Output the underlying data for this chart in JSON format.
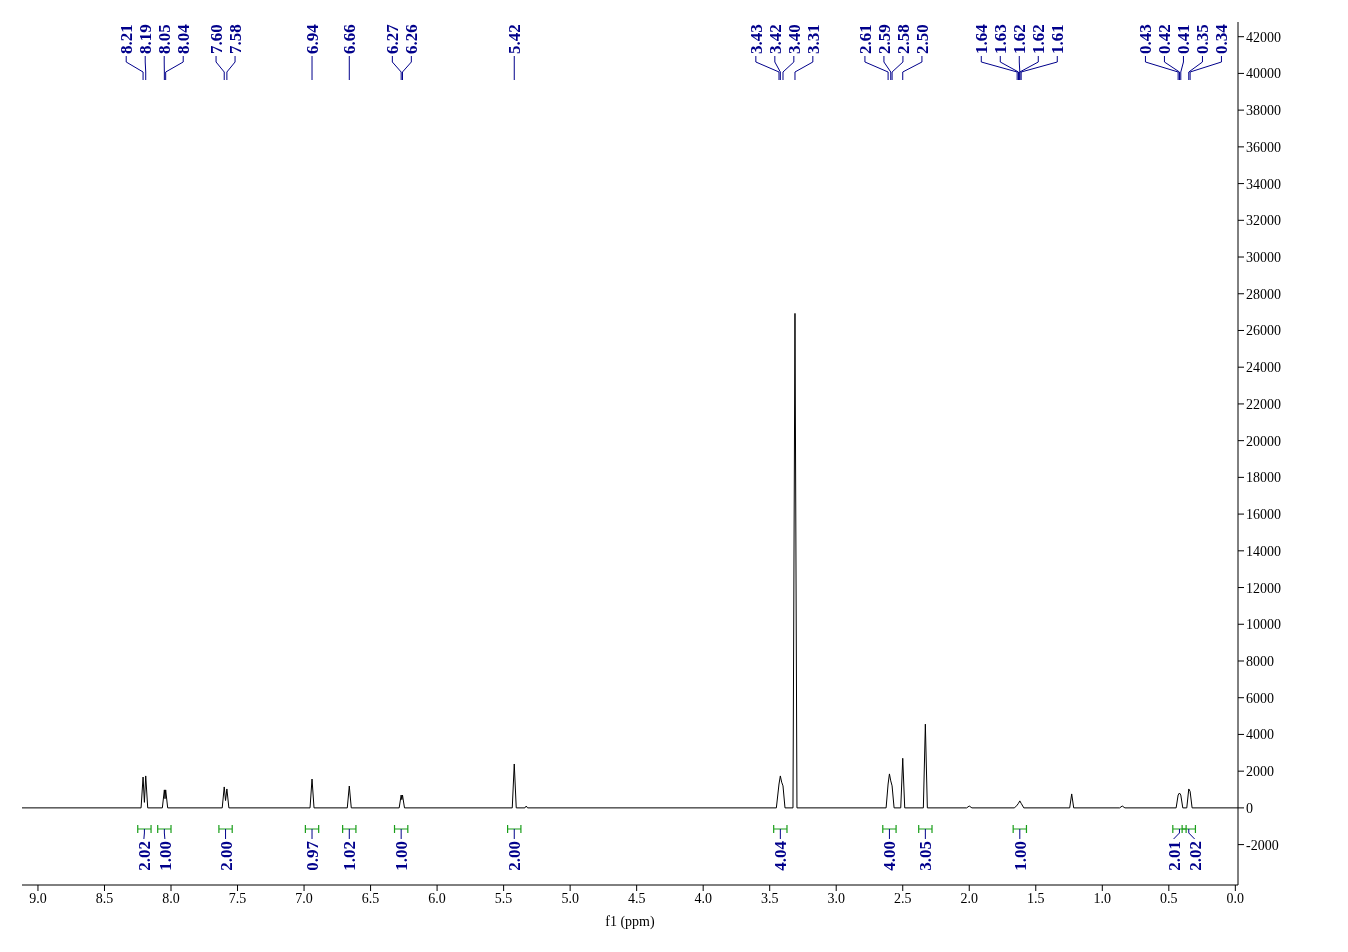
{
  "chart_data": {
    "type": "line",
    "xlabel": "f1 (ppm)",
    "xlim": [
      9.12,
      -0.02
    ],
    "xticks": [
      {
        "value": 9,
        "label": "9.0"
      },
      {
        "value": 8.5,
        "label": "8.5"
      },
      {
        "value": 8,
        "label": "8.0"
      },
      {
        "value": 7.5,
        "label": "7.5"
      },
      {
        "value": 7,
        "label": "7.0"
      },
      {
        "value": 6.5,
        "label": "6.5"
      },
      {
        "value": 6,
        "label": "6.0"
      },
      {
        "value": 5.5,
        "label": "5.5"
      },
      {
        "value": 5,
        "label": "5.0"
      },
      {
        "value": 4.5,
        "label": "4.5"
      },
      {
        "value": 4,
        "label": "4.0"
      },
      {
        "value": 3.5,
        "label": "3.5"
      },
      {
        "value": 3,
        "label": "3.0"
      },
      {
        "value": 2.5,
        "label": "2.5"
      },
      {
        "value": 2,
        "label": "2.0"
      },
      {
        "value": 1.5,
        "label": "1.5"
      },
      {
        "value": 1,
        "label": "1.0"
      },
      {
        "value": 0.5,
        "label": "0.5"
      },
      {
        "value": 0,
        "label": "0.0"
      }
    ],
    "ylim": [
      -4200,
      42800
    ],
    "yticks": [
      -2000,
      0,
      2000,
      4000,
      6000,
      8000,
      10000,
      12000,
      14000,
      16000,
      18000,
      20000,
      22000,
      24000,
      26000,
      28000,
      30000,
      32000,
      34000,
      36000,
      38000,
      40000,
      42000
    ],
    "series": [
      {
        "color": "#000000",
        "x": [
          9.12,
          8.225,
          8.21,
          8.2,
          8.19,
          8.175,
          8.065,
          8.05,
          8.045,
          8.04,
          8.025,
          7.615,
          7.6,
          7.59,
          7.58,
          7.565,
          6.955,
          6.94,
          6.925,
          6.675,
          6.66,
          6.645,
          6.285,
          6.27,
          6.265,
          6.26,
          6.245,
          5.435,
          5.42,
          5.405,
          5.34,
          5.33,
          5.32,
          3.45,
          3.43,
          3.42,
          3.41,
          3.4,
          3.385,
          3.325,
          3.31,
          3.295,
          2.625,
          2.61,
          2.6,
          2.59,
          2.58,
          2.565,
          2.515,
          2.5,
          2.485,
          2.345,
          2.33,
          2.315,
          2.02,
          2,
          1.98,
          1.66,
          1.64,
          1.63,
          1.62,
          1.61,
          1.59,
          1.245,
          1.23,
          1.215,
          0.87,
          0.85,
          0.83,
          0.445,
          0.43,
          0.42,
          0.41,
          0.395,
          0.365,
          0.35,
          0.34,
          0.325,
          -0.02
        ],
        "values": [
          0,
          0,
          1680,
          300,
          1740,
          0,
          0,
          980,
          500,
          980,
          0,
          0,
          1140,
          400,
          1030,
          0,
          0,
          1570,
          0,
          0,
          1190,
          0,
          0,
          700,
          450,
          700,
          0,
          0,
          2390,
          0,
          0,
          100,
          0,
          0,
          1300,
          1740,
          1400,
          1200,
          0,
          0,
          26930,
          0,
          0,
          1300,
          1850,
          1470,
          1200,
          0,
          0,
          2700,
          0,
          0,
          4560,
          0,
          0,
          100,
          0,
          0,
          150,
          250,
          380,
          250,
          0,
          0,
          760,
          0,
          0,
          100,
          0,
          0,
          700,
          810,
          700,
          0,
          0,
          1030,
          900,
          0,
          0
        ]
      }
    ],
    "annotations": [
      {
        "text": "8.21",
        "x": 8.21
      },
      {
        "text": "8.19",
        "x": 8.19
      },
      {
        "text": "8.05",
        "x": 8.05
      },
      {
        "text": "8.04",
        "x": 8.04
      },
      {
        "text": "7.60",
        "x": 7.6
      },
      {
        "text": "7.58",
        "x": 7.58
      },
      {
        "text": "6.94",
        "x": 6.94
      },
      {
        "text": "6.66",
        "x": 6.66
      },
      {
        "text": "6.27",
        "x": 6.27
      },
      {
        "text": "6.26",
        "x": 6.26
      },
      {
        "text": "5.42",
        "x": 5.42
      },
      {
        "text": "3.43",
        "x": 3.43
      },
      {
        "text": "3.42",
        "x": 3.42
      },
      {
        "text": "3.40",
        "x": 3.4
      },
      {
        "text": "3.31",
        "x": 3.31
      },
      {
        "text": "2.61",
        "x": 2.61
      },
      {
        "text": "2.59",
        "x": 2.59
      },
      {
        "text": "2.58",
        "x": 2.58
      },
      {
        "text": "2.50",
        "x": 2.5
      },
      {
        "text": "1.64",
        "x": 1.64
      },
      {
        "text": "1.63",
        "x": 1.63
      },
      {
        "text": "1.62",
        "x": 1.62
      },
      {
        "text": "1.62",
        "x": 1.62
      },
      {
        "text": "1.61",
        "x": 1.61
      },
      {
        "text": "0.43",
        "x": 0.43
      },
      {
        "text": "0.42",
        "x": 0.42
      },
      {
        "text": "0.41",
        "x": 0.41
      },
      {
        "text": "0.35",
        "x": 0.35
      },
      {
        "text": "0.34",
        "x": 0.34
      },
      {
        "text": "2.02",
        "x": 8.2,
        "y": -1150
      },
      {
        "text": "1.00",
        "x": 8.05,
        "y": -1150
      },
      {
        "text": "2.00",
        "x": 7.59,
        "y": -1150
      },
      {
        "text": "0.97",
        "x": 6.94,
        "y": -1150
      },
      {
        "text": "1.02",
        "x": 6.66,
        "y": -1150
      },
      {
        "text": "1.00",
        "x": 6.27,
        "y": -1150
      },
      {
        "text": "2.00",
        "x": 5.42,
        "y": -1150
      },
      {
        "text": "4.04",
        "x": 3.42,
        "y": -1150
      },
      {
        "text": "4.00",
        "x": 2.6,
        "y": -1150
      },
      {
        "text": "3.05",
        "x": 2.33,
        "y": -1150
      },
      {
        "text": "1.00",
        "x": 1.62,
        "y": -1150
      },
      {
        "text": "2.01",
        "x": 0.42,
        "y": -1150
      },
      {
        "text": "2.02",
        "x": 0.35,
        "y": -1150
      }
    ]
  }
}
